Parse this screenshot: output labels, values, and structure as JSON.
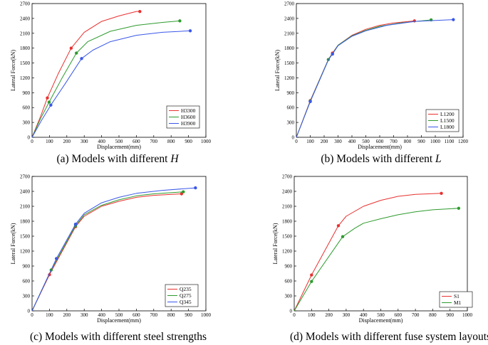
{
  "figure": "Lateral force vs displacement curves",
  "chart_data": [
    {
      "type": "line",
      "caption_prefix": "(a) Models with different",
      "caption_italic": "H",
      "xlabel": "Displacement(mm)",
      "ylabel": "Lateral Force(kN)",
      "xlim": [
        0,
        1000
      ],
      "ylim": [
        0,
        2700
      ],
      "xticks": [
        0,
        100,
        200,
        300,
        400,
        500,
        600,
        700,
        800,
        900,
        1000
      ],
      "yticks": [
        0,
        300,
        600,
        900,
        1200,
        1500,
        1800,
        2100,
        2400,
        2700
      ],
      "legend_position": "center-right",
      "series": [
        {
          "name": "H3300",
          "color": "#e8312f",
          "points": [
            [
              0,
              0
            ],
            [
              50,
              430
            ],
            [
              88,
              795
            ],
            [
              150,
              1280
            ],
            [
              225,
              1800
            ],
            [
              300,
              2120
            ],
            [
              400,
              2340
            ],
            [
              500,
              2450
            ],
            [
              600,
              2540
            ],
            [
              620,
              2540
            ]
          ],
          "markers": [
            [
              88,
              795
            ],
            [
              225,
              1800
            ],
            [
              620,
              2540
            ]
          ]
        },
        {
          "name": "H3600",
          "color": "#2e9b2e",
          "points": [
            [
              0,
              0
            ],
            [
              50,
              385
            ],
            [
              98,
              710
            ],
            [
              170,
              1180
            ],
            [
              255,
              1700
            ],
            [
              320,
              1930
            ],
            [
              450,
              2140
            ],
            [
              600,
              2260
            ],
            [
              750,
              2320
            ],
            [
              850,
              2350
            ]
          ],
          "markers": [
            [
              98,
              710
            ],
            [
              255,
              1700
            ],
            [
              850,
              2350
            ]
          ]
        },
        {
          "name": "H3900",
          "color": "#3a57e8",
          "points": [
            [
              0,
              0
            ],
            [
              55,
              345
            ],
            [
              108,
              650
            ],
            [
              190,
              1080
            ],
            [
              285,
              1590
            ],
            [
              350,
              1760
            ],
            [
              450,
              1930
            ],
            [
              600,
              2060
            ],
            [
              750,
              2120
            ],
            [
              910,
              2150
            ]
          ],
          "markers": [
            [
              108,
              650
            ],
            [
              285,
              1590
            ],
            [
              910,
              2150
            ]
          ]
        }
      ]
    },
    {
      "type": "line",
      "caption_prefix": "(b) Models with different",
      "caption_italic": "L",
      "xlabel": "Displacement(mm)",
      "ylabel": "Lateral Force(kN)",
      "xlim": [
        0,
        1200
      ],
      "ylim": [
        0,
        2700
      ],
      "xticks": [
        0,
        100,
        200,
        300,
        400,
        500,
        600,
        700,
        800,
        900,
        1000,
        1100,
        1200
      ],
      "yticks": [
        0,
        300,
        600,
        900,
        1200,
        1500,
        1800,
        2100,
        2400,
        2700
      ],
      "legend_position": "bottom-right",
      "series": [
        {
          "name": "L1200",
          "color": "#e8312f",
          "points": [
            [
              0,
              0
            ],
            [
              100,
              740
            ],
            [
              230,
              1570
            ],
            [
              260,
              1700
            ],
            [
              300,
              1860
            ],
            [
              400,
              2060
            ],
            [
              500,
              2180
            ],
            [
              600,
              2260
            ],
            [
              700,
              2310
            ],
            [
              850,
              2350
            ]
          ],
          "markers": [
            [
              100,
              740
            ],
            [
              260,
              1700
            ],
            [
              850,
              2350
            ]
          ]
        },
        {
          "name": "L1500",
          "color": "#2e9b2e",
          "points": [
            [
              0,
              0
            ],
            [
              100,
              730
            ],
            [
              230,
              1570
            ],
            [
              260,
              1690
            ],
            [
              300,
              1860
            ],
            [
              400,
              2050
            ],
            [
              500,
              2160
            ],
            [
              600,
              2240
            ],
            [
              750,
              2310
            ],
            [
              970,
              2370
            ]
          ],
          "markers": [
            [
              100,
              730
            ],
            [
              230,
              1570
            ],
            [
              970,
              2370
            ]
          ]
        },
        {
          "name": "L1800",
          "color": "#3a57e8",
          "points": [
            [
              0,
              0
            ],
            [
              100,
              720
            ],
            [
              230,
              1560
            ],
            [
              260,
              1680
            ],
            [
              300,
              1850
            ],
            [
              400,
              2040
            ],
            [
              500,
              2150
            ],
            [
              650,
              2260
            ],
            [
              850,
              2340
            ],
            [
              1000,
              2360
            ],
            [
              1130,
              2375
            ]
          ],
          "markers": [
            [
              100,
              720
            ],
            [
              260,
              1680
            ],
            [
              1130,
              2375
            ]
          ]
        }
      ]
    },
    {
      "type": "line",
      "caption_prefix": "(c) Models with different steel strengths",
      "caption_italic": "",
      "xlabel": "Displacement(mm)",
      "ylabel": "Lateral Force(kN)",
      "xlim": [
        0,
        1000
      ],
      "ylim": [
        0,
        2700
      ],
      "xticks": [
        0,
        100,
        200,
        300,
        400,
        500,
        600,
        700,
        800,
        900,
        1000
      ],
      "yticks": [
        0,
        300,
        600,
        900,
        1200,
        1500,
        1800,
        2100,
        2400,
        2700
      ],
      "legend_position": "bottom-right",
      "series": [
        {
          "name": "Q235",
          "color": "#e8312f",
          "points": [
            [
              0,
              0
            ],
            [
              100,
              725
            ],
            [
              250,
              1690
            ],
            [
              300,
              1900
            ],
            [
              400,
              2100
            ],
            [
              500,
              2200
            ],
            [
              600,
              2280
            ],
            [
              700,
              2320
            ],
            [
              860,
              2350
            ]
          ],
          "markers": [
            [
              100,
              725
            ],
            [
              250,
              1690
            ],
            [
              860,
              2350
            ]
          ]
        },
        {
          "name": "Q275",
          "color": "#2e9b2e",
          "points": [
            [
              0,
              0
            ],
            [
              110,
              820
            ],
            [
              250,
              1710
            ],
            [
              300,
              1930
            ],
            [
              400,
              2120
            ],
            [
              500,
              2230
            ],
            [
              600,
              2310
            ],
            [
              700,
              2350
            ],
            [
              870,
              2390
            ]
          ],
          "markers": [
            [
              110,
              820
            ],
            [
              250,
              1710
            ],
            [
              870,
              2390
            ]
          ]
        },
        {
          "name": "Q345",
          "color": "#3a57e8",
          "points": [
            [
              0,
              0
            ],
            [
              140,
              1050
            ],
            [
              250,
              1740
            ],
            [
              300,
              1960
            ],
            [
              400,
              2170
            ],
            [
              500,
              2280
            ],
            [
              600,
              2360
            ],
            [
              750,
              2420
            ],
            [
              940,
              2470
            ]
          ],
          "markers": [
            [
              140,
              1050
            ],
            [
              250,
              1740
            ],
            [
              940,
              2470
            ]
          ]
        }
      ]
    },
    {
      "type": "line",
      "caption_prefix": "(d) Models with different fuse system layouts",
      "caption_italic": "",
      "xlabel": "Displacement(mm)",
      "ylabel": "Lateral Force(kN)",
      "xlim": [
        0,
        1000
      ],
      "ylim": [
        0,
        2700
      ],
      "xticks": [
        0,
        100,
        200,
        300,
        400,
        500,
        600,
        700,
        800,
        900,
        1000
      ],
      "yticks": [
        0,
        300,
        600,
        900,
        1200,
        1500,
        1800,
        2100,
        2400,
        2700
      ],
      "legend_position": "bottom-right",
      "series": [
        {
          "name": "S1",
          "color": "#e8312f",
          "points": [
            [
              0,
              0
            ],
            [
              100,
              720
            ],
            [
              255,
              1710
            ],
            [
              300,
              1900
            ],
            [
              400,
              2100
            ],
            [
              500,
              2220
            ],
            [
              600,
              2300
            ],
            [
              700,
              2340
            ],
            [
              850,
              2360
            ]
          ],
          "markers": [
            [
              100,
              720
            ],
            [
              255,
              1710
            ],
            [
              850,
              2360
            ]
          ]
        },
        {
          "name": "M1",
          "color": "#2e9b2e",
          "points": [
            [
              0,
              0
            ],
            [
              100,
              590
            ],
            [
              280,
              1490
            ],
            [
              350,
              1660
            ],
            [
              400,
              1760
            ],
            [
              500,
              1850
            ],
            [
              600,
              1930
            ],
            [
              700,
              1990
            ],
            [
              800,
              2030
            ],
            [
              950,
              2060
            ]
          ],
          "markers": [
            [
              100,
              590
            ],
            [
              280,
              1490
            ],
            [
              950,
              2060
            ]
          ]
        }
      ]
    }
  ]
}
